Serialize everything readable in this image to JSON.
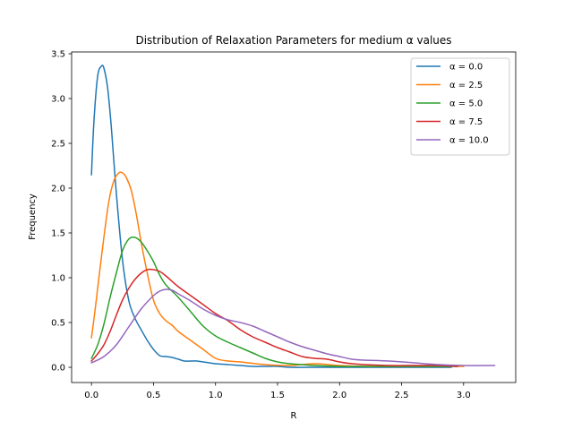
{
  "chart_data": {
    "type": "line",
    "title": "Distribution of Relaxation Parameters for medium α values",
    "xlabel": "R",
    "ylabel": "Frequency",
    "xlim": [
      -0.16,
      3.42
    ],
    "ylim": [
      -0.17,
      3.52
    ],
    "xticks": [
      0.0,
      0.5,
      1.0,
      1.5,
      2.0,
      2.5,
      3.0
    ],
    "xtick_labels": [
      "0.0",
      "0.5",
      "1.0",
      "1.5",
      "2.0",
      "2.5",
      "3.0"
    ],
    "yticks": [
      0.0,
      0.5,
      1.0,
      1.5,
      2.0,
      2.5,
      3.0,
      3.5
    ],
    "ytick_labels": [
      "0.0",
      "0.5",
      "1.0",
      "1.5",
      "2.0",
      "2.5",
      "3.0",
      "3.5"
    ],
    "grid": false,
    "legend_position": "top-right",
    "series": [
      {
        "name": "α = 0.0",
        "color": "#1f77b4",
        "x": [
          0.0,
          0.02,
          0.05,
          0.08,
          0.1,
          0.13,
          0.16,
          0.2,
          0.25,
          0.3,
          0.35,
          0.4,
          0.45,
          0.5,
          0.55,
          0.6,
          0.65,
          0.7,
          0.75,
          0.8,
          0.85,
          0.9,
          0.95,
          1.0,
          1.1,
          1.2,
          1.3,
          1.4,
          1.5,
          1.6,
          1.8,
          2.0,
          2.3,
          2.6,
          2.9
        ],
        "y": [
          2.15,
          2.75,
          3.25,
          3.36,
          3.34,
          3.12,
          2.68,
          1.95,
          1.2,
          0.75,
          0.55,
          0.42,
          0.3,
          0.2,
          0.13,
          0.12,
          0.11,
          0.09,
          0.07,
          0.07,
          0.07,
          0.06,
          0.05,
          0.04,
          0.03,
          0.02,
          0.01,
          0.01,
          0.01,
          0.0,
          0.0,
          0.0,
          0.0,
          0.0,
          0.0
        ]
      },
      {
        "name": "α = 2.5",
        "color": "#ff7f0e",
        "x": [
          0.0,
          0.03,
          0.06,
          0.1,
          0.14,
          0.18,
          0.22,
          0.25,
          0.28,
          0.32,
          0.36,
          0.4,
          0.45,
          0.5,
          0.55,
          0.6,
          0.65,
          0.7,
          0.8,
          0.9,
          1.0,
          1.1,
          1.2,
          1.4,
          1.6,
          1.8,
          2.0,
          2.2,
          2.4,
          2.6,
          2.8,
          3.0
        ],
        "y": [
          0.33,
          0.65,
          1.0,
          1.45,
          1.85,
          2.08,
          2.17,
          2.17,
          2.12,
          1.98,
          1.72,
          1.4,
          1.05,
          0.75,
          0.6,
          0.52,
          0.47,
          0.4,
          0.3,
          0.2,
          0.1,
          0.07,
          0.06,
          0.03,
          0.02,
          0.04,
          0.02,
          0.01,
          0.01,
          0.01,
          0.01,
          0.01
        ]
      },
      {
        "name": "α = 5.0",
        "color": "#2ca02c",
        "x": [
          0.0,
          0.05,
          0.1,
          0.15,
          0.2,
          0.25,
          0.3,
          0.35,
          0.4,
          0.45,
          0.5,
          0.55,
          0.6,
          0.7,
          0.8,
          0.9,
          1.0,
          1.1,
          1.2,
          1.3,
          1.4,
          1.5,
          1.6,
          1.7,
          1.8,
          2.0,
          2.2,
          2.4,
          2.6,
          2.8,
          2.95
        ],
        "y": [
          0.1,
          0.25,
          0.48,
          0.78,
          1.05,
          1.3,
          1.43,
          1.45,
          1.4,
          1.3,
          1.18,
          1.03,
          0.92,
          0.78,
          0.62,
          0.46,
          0.35,
          0.28,
          0.22,
          0.16,
          0.1,
          0.06,
          0.04,
          0.03,
          0.02,
          0.01,
          0.01,
          0.01,
          0.01,
          0.01,
          0.01
        ]
      },
      {
        "name": "α = 7.5",
        "color": "#d62728",
        "x": [
          0.0,
          0.05,
          0.1,
          0.15,
          0.2,
          0.25,
          0.3,
          0.35,
          0.4,
          0.45,
          0.5,
          0.55,
          0.6,
          0.7,
          0.8,
          0.9,
          1.0,
          1.1,
          1.2,
          1.3,
          1.4,
          1.5,
          1.6,
          1.7,
          1.8,
          1.9,
          2.0,
          2.1,
          2.2,
          2.4,
          2.6,
          2.8,
          2.95
        ],
        "y": [
          0.07,
          0.15,
          0.25,
          0.4,
          0.58,
          0.75,
          0.88,
          0.98,
          1.05,
          1.09,
          1.09,
          1.07,
          1.02,
          0.9,
          0.8,
          0.7,
          0.6,
          0.52,
          0.42,
          0.34,
          0.28,
          0.22,
          0.17,
          0.12,
          0.1,
          0.09,
          0.06,
          0.04,
          0.03,
          0.02,
          0.02,
          0.02,
          0.01
        ]
      },
      {
        "name": "α = 10.0",
        "color": "#9467bd",
        "x": [
          0.0,
          0.1,
          0.2,
          0.3,
          0.4,
          0.5,
          0.55,
          0.6,
          0.65,
          0.7,
          0.8,
          0.9,
          1.0,
          1.1,
          1.2,
          1.3,
          1.4,
          1.5,
          1.6,
          1.7,
          1.8,
          1.9,
          2.0,
          2.1,
          2.2,
          2.4,
          2.6,
          2.8,
          3.0,
          3.25
        ],
        "y": [
          0.05,
          0.12,
          0.25,
          0.45,
          0.65,
          0.8,
          0.85,
          0.87,
          0.86,
          0.82,
          0.74,
          0.65,
          0.58,
          0.53,
          0.5,
          0.46,
          0.4,
          0.34,
          0.28,
          0.23,
          0.19,
          0.15,
          0.12,
          0.09,
          0.08,
          0.07,
          0.05,
          0.03,
          0.02,
          0.02
        ]
      }
    ]
  }
}
